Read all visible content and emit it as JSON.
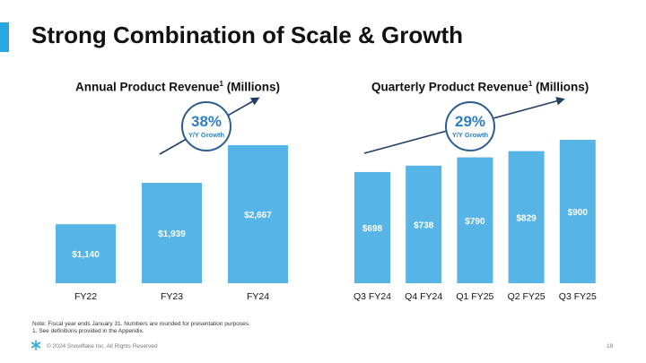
{
  "slide": {
    "title": "Strong Combination of Scale & Growth",
    "note_line1": "Note: Fiscal year ends January 31. Numbers are rounded for presentation purposes.",
    "note_line2": "1. See definitions provided in the Appendix.",
    "copyright": "© 2024 Snowflake Inc. All Rights Reserved",
    "page_number": "19",
    "logo_icon": "snowflake-logo-icon"
  },
  "colors": {
    "bar": "#56b4e6",
    "accent": "#29a8e0",
    "growth_text": "#2a7fc4",
    "circle": "#2b5d8f",
    "arrow": "#1f3f66"
  },
  "charts": {
    "annual": {
      "title_main": "Annual Product Revenue",
      "title_sup": "1",
      "title_suffix": " (Millions)",
      "growth_value": "38%",
      "growth_label": "Y/Y Growth"
    },
    "quarterly": {
      "title_main": "Quarterly Product Revenue",
      "title_sup": "1",
      "title_suffix": " (Millions)",
      "growth_value": "29%",
      "growth_label": "Y/Y Growth"
    }
  },
  "chart_data": [
    {
      "type": "bar",
      "title": "Annual Product Revenue1 (Millions)",
      "categories": [
        "FY22",
        "FY23",
        "FY24"
      ],
      "values": [
        1140,
        1939,
        2667
      ],
      "labels": [
        "$1,140",
        "$1,939",
        "$2,667"
      ],
      "ylim": [
        0,
        2667
      ],
      "grid": false,
      "annotation": "38% Y/Y Growth"
    },
    {
      "type": "bar",
      "title": "Quarterly Product Revenue1 (Millions)",
      "categories": [
        "Q3 FY24",
        "Q4 FY24",
        "Q1 FY25",
        "Q2 FY25",
        "Q3 FY25"
      ],
      "values": [
        698,
        738,
        790,
        829,
        900
      ],
      "labels": [
        "$698",
        "$738",
        "$790",
        "$829",
        "$900"
      ],
      "ylim": [
        0,
        900
      ],
      "grid": false,
      "annotation": "29% Y/Y Growth"
    }
  ]
}
